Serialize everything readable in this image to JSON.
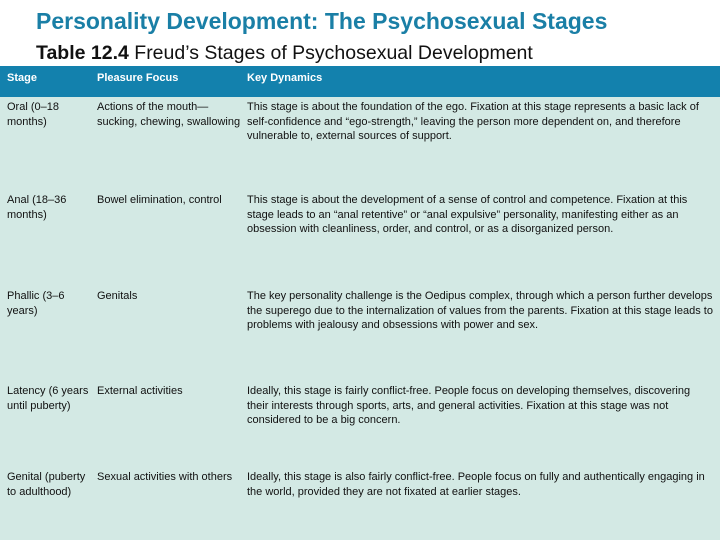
{
  "slide": {
    "title": "Personality Development: The Psychosexual Stages"
  },
  "caption": {
    "number": "Table 12.4",
    "text": "Freud’s Stages of Psychosexual Development"
  },
  "table": {
    "headers": [
      "Stage",
      "Pleasure Focus",
      "Key Dynamics"
    ],
    "rows": [
      {
        "stage": "Oral (0–18 months)",
        "focus": "Actions of the mouth—sucking, chewing, swallowing",
        "dynamics": "This stage is about the foundation of the ego. Fixation at this stage represents a basic lack of self-confidence and “ego-strength,” leaving the person more dependent on, and therefore vulnerable to, external sources of support."
      },
      {
        "stage": "Anal (18–36 months)",
        "focus": "Bowel elimination, control",
        "dynamics": "This stage is about the development of a sense of control and competence. Fixation at this stage leads to an “anal retentive” or “anal expulsive” personality, manifesting either as an obsession with cleanliness, order, and control, or as a disorganized person."
      },
      {
        "stage": "Phallic (3–6 years)",
        "focus": "Genitals",
        "dynamics": "The key personality challenge is the Oedipus complex, through which a person further develops the superego due to the internalization of values from the parents. Fixation at this stage leads to problems with jealousy and obsessions with power and sex."
      },
      {
        "stage": "Latency (6 years until puberty)",
        "focus": "External activities",
        "dynamics": "Ideally, this stage is fairly conflict-free. People focus on developing themselves, discovering their interests through sports, arts, and general activities. Fixation at this stage was not considered to be a big concern."
      },
      {
        "stage": "Genital (puberty to adulthood)",
        "focus": "Sexual activities with others",
        "dynamics": "Ideally, this stage is also fairly conflict-free. People focus on fully and authentically engaging in the world, provided they are not fixated at earlier stages."
      }
    ]
  }
}
